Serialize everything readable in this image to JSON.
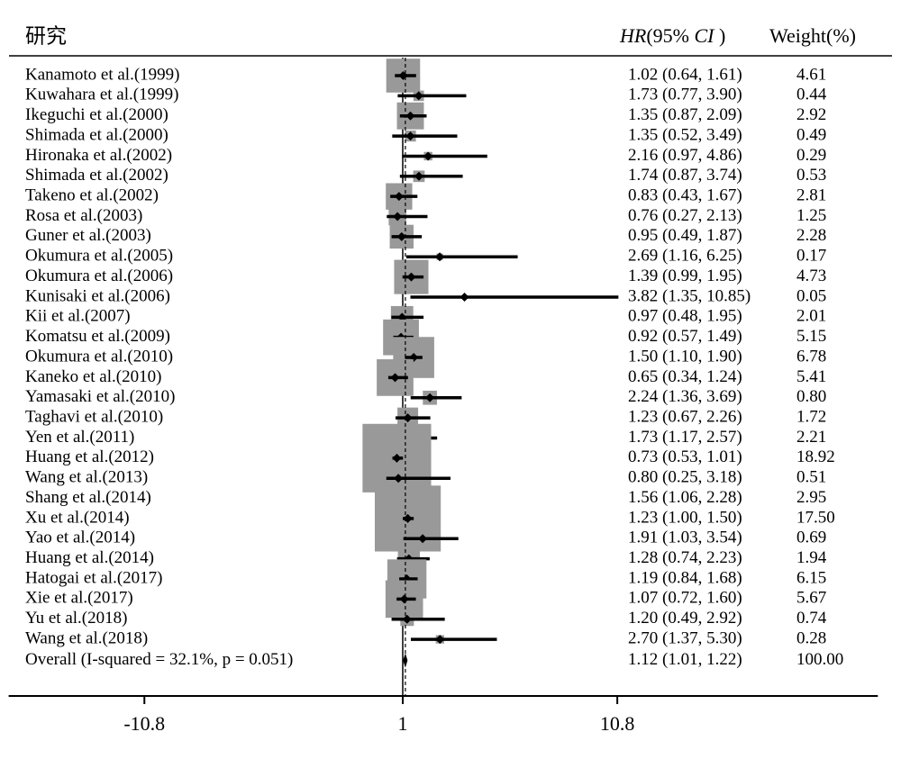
{
  "chart_data": {
    "type": "forest",
    "column_headers": {
      "study": "研究",
      "hr": [
        "HR",
        "(95% ",
        "CI",
        " )"
      ],
      "weight": "Weight(%)"
    },
    "studies": [
      "Kanamoto et al.(1999)",
      "Kuwahara et al.(1999)",
      "Ikeguchi et al.(2000)",
      "Shimada et al.(2000)",
      "Hironaka et al.(2002)",
      "Shimada et al.(2002)",
      "Takeno et al.(2002)",
      "Rosa et al.(2003)",
      "Guner et al.(2003)",
      "Okumura et al.(2005)",
      "Okumura et al.(2006)",
      "Kunisaki et al.(2006)",
      "Kii et al.(2007)",
      "Komatsu et al.(2009)",
      "Okumura et al.(2010)",
      "Kaneko et al.(2010)",
      "Yamasaki et al.(2010)",
      "Taghavi et al.(2010)",
      "Yen et al.(2011)",
      "Huang et al.(2012)",
      "Wang et al.(2013)",
      "Shang et al.(2014)",
      "Xu et al.(2014)",
      "Yao et al.(2014)",
      "Huang et al.(2014)",
      "Hatogai et al.(2017)",
      "Xie et al.(2017)",
      "Yu et al.(2018)",
      "Wang et al.(2018)"
    ],
    "hr": [
      1.02,
      1.73,
      1.35,
      1.35,
      2.16,
      1.74,
      0.83,
      0.76,
      0.95,
      2.69,
      1.39,
      3.82,
      0.97,
      0.92,
      1.5,
      0.65,
      2.24,
      1.23,
      1.73,
      0.73,
      0.8,
      1.56,
      1.23,
      1.91,
      1.28,
      1.19,
      1.07,
      1.2,
      2.7
    ],
    "lower": [
      0.64,
      0.77,
      0.87,
      0.52,
      0.97,
      0.87,
      0.43,
      0.27,
      0.49,
      1.16,
      0.99,
      1.35,
      0.48,
      0.57,
      1.1,
      0.34,
      1.36,
      0.67,
      1.17,
      0.53,
      0.25,
      1.06,
      1.0,
      1.03,
      0.74,
      0.84,
      0.72,
      0.49,
      1.37
    ],
    "upper": [
      1.61,
      3.9,
      2.09,
      3.49,
      4.86,
      3.74,
      1.67,
      2.13,
      1.87,
      6.25,
      1.95,
      10.85,
      1.95,
      1.49,
      1.9,
      1.24,
      3.69,
      2.26,
      2.57,
      1.01,
      3.18,
      2.28,
      1.5,
      3.54,
      2.23,
      1.68,
      1.6,
      2.92,
      5.3
    ],
    "weights": [
      4.61,
      0.44,
      2.92,
      0.49,
      0.29,
      0.53,
      2.81,
      1.25,
      2.28,
      0.17,
      4.73,
      0.05,
      2.01,
      5.15,
      6.78,
      5.41,
      0.8,
      1.72,
      2.21,
      18.92,
      0.51,
      2.95,
      17.5,
      0.69,
      1.94,
      6.15,
      5.67,
      0.74,
      0.28
    ],
    "hr_labels": [
      "1.02 (0.64, 1.61)",
      "1.73 (0.77, 3.90)",
      "1.35 (0.87, 2.09)",
      "1.35 (0.52, 3.49)",
      "2.16 (0.97, 4.86)",
      "1.74 (0.87, 3.74)",
      "0.83 (0.43, 1.67)",
      "0.76 (0.27, 2.13)",
      "0.95 (0.49, 1.87)",
      "2.69 (1.16, 6.25)",
      "1.39 (0.99, 1.95)",
      "3.82 (1.35, 10.85)",
      "0.97 (0.48, 1.95)",
      "0.92 (0.57, 1.49)",
      "1.50 (1.10, 1.90)",
      "0.65 (0.34, 1.24)",
      "2.24 (1.36, 3.69)",
      "1.23 (0.67, 2.26)",
      "1.73 (1.17, 2.57)",
      "0.73 (0.53, 1.01)",
      "0.80 (0.25, 3.18)",
      "1.56 (1.06, 2.28)",
      "1.23 (1.00, 1.50)",
      "1.91 (1.03, 3.54)",
      "1.28 (0.74, 2.23)",
      "1.19 (0.84, 1.68)",
      "1.07 (0.72, 1.60)",
      "1.20 (0.49, 2.92)",
      "2.70 (1.37, 5.30)"
    ],
    "weight_labels": [
      "4.61",
      "0.44",
      "2.92",
      "0.49",
      "0.29",
      "0.53",
      "2.81",
      "1.25",
      "2.28",
      "0.17",
      "4.73",
      "0.05",
      "2.01",
      "5.15",
      "6.78",
      "5.41",
      "0.80",
      "1.72",
      "2.21",
      "18.92",
      "0.51",
      "2.95",
      "17.50",
      "0.69",
      "1.94",
      "6.15",
      "5.67",
      "0.74",
      "0.28"
    ],
    "overall": {
      "label": "Overall  (I-squared = 32.1%, p = 0.051)",
      "hr": 1.12,
      "lower": 1.01,
      "upper": 1.22,
      "hr_label": "1.12 (1.01, 1.22)",
      "weight_label": "100.00"
    },
    "null_line": 1,
    "box_color": "#999999",
    "xlim": [
      -17,
      22.7
    ],
    "xticks": [
      -10.8,
      1,
      10.8
    ]
  }
}
